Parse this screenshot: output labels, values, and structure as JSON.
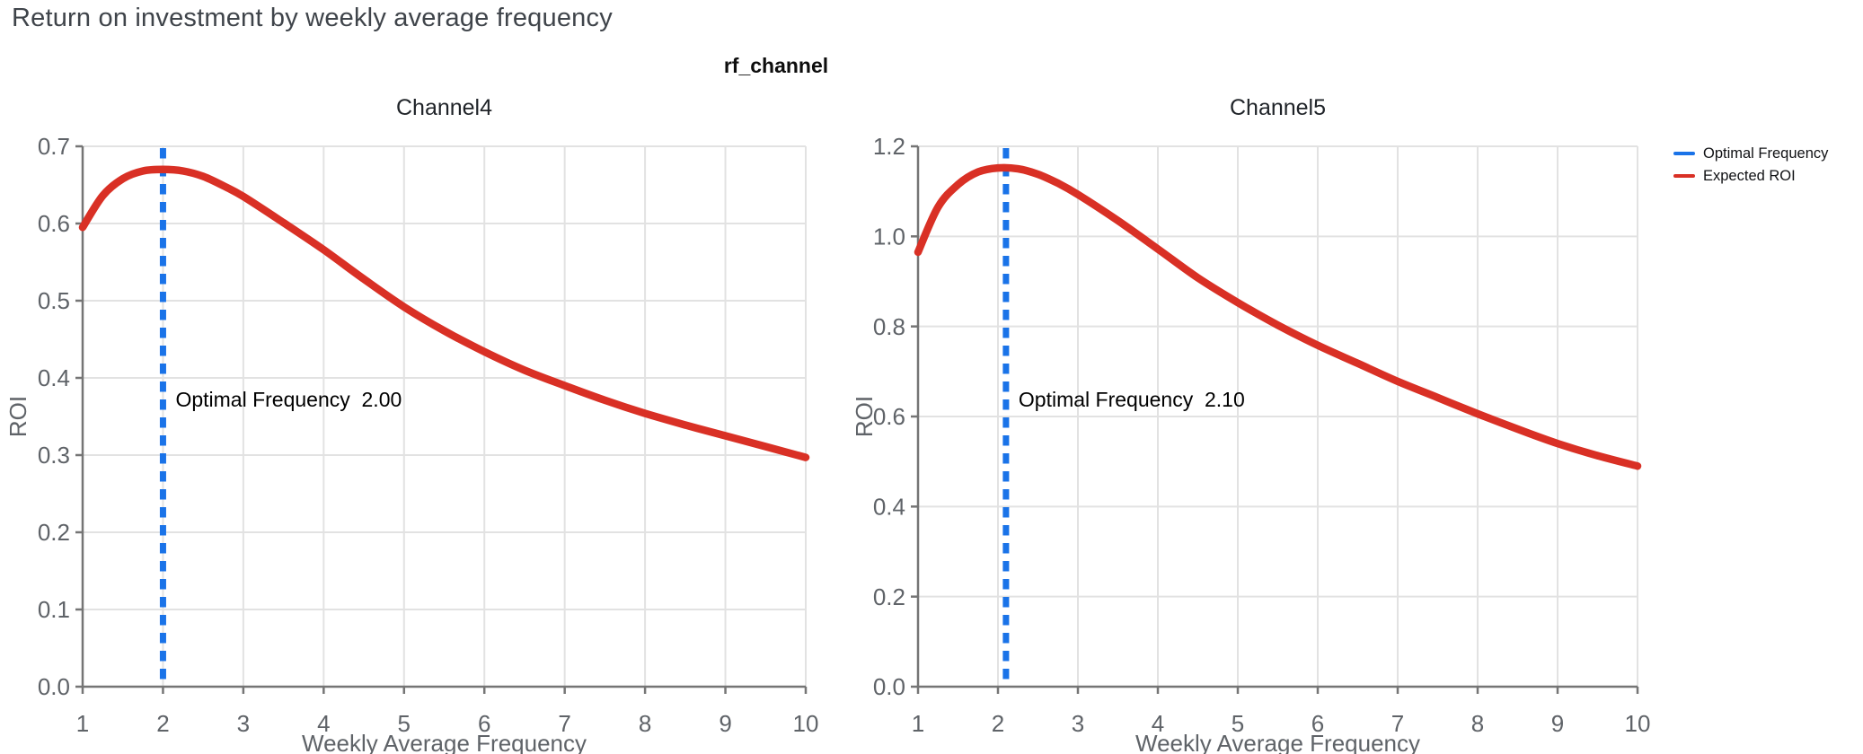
{
  "header": {
    "title": "Return on investment by weekly average frequency"
  },
  "figure": {
    "suptitle": "rf_channel"
  },
  "legend": {
    "position": "top-right",
    "items": [
      {
        "label": "Optimal Frequency",
        "color": "#1a73e8"
      },
      {
        "label": "Expected ROI",
        "color": "#d93025"
      }
    ]
  },
  "colors": {
    "expected_roi_line": "#d93025",
    "optimal_frequency_line": "#1a73e8",
    "gridline": "#e2e2e2",
    "axis_spine": "#757575",
    "tick_label": "#5f6368",
    "axis_title": "#5f6368",
    "chart_title": "#1f2328",
    "annotation_text": "#000000",
    "page_title": "#3f444a",
    "background": "#ffffff"
  },
  "chart_data": [
    {
      "type": "line",
      "title": "Channel4",
      "xlabel": "Weekly Average Frequency",
      "ylabel": "ROI",
      "xlim": [
        1,
        10
      ],
      "ylim": [
        0.0,
        0.7
      ],
      "grid": true,
      "xticks": [
        1,
        2,
        3,
        4,
        5,
        6,
        7,
        8,
        9,
        10
      ],
      "xtick_labels": [
        "1",
        "2",
        "3",
        "4",
        "5",
        "6",
        "7",
        "8",
        "9",
        "10"
      ],
      "yticks": [
        0.0,
        0.1,
        0.2,
        0.3,
        0.4,
        0.5,
        0.6,
        0.7
      ],
      "ytick_labels": [
        "0.0",
        "0.1",
        "0.2",
        "0.3",
        "0.4",
        "0.5",
        "0.6",
        "0.7"
      ],
      "series": [
        {
          "name": "Expected ROI",
          "color": "#d93025",
          "x": [
            1,
            1.25,
            1.5,
            1.75,
            2,
            2.25,
            2.5,
            2.75,
            3,
            3.5,
            4,
            4.5,
            5,
            5.5,
            6,
            6.5,
            7,
            7.5,
            8,
            8.5,
            9,
            9.5,
            10
          ],
          "y": [
            0.595,
            0.636,
            0.658,
            0.668,
            0.67,
            0.668,
            0.661,
            0.649,
            0.635,
            0.601,
            0.566,
            0.528,
            0.492,
            0.461,
            0.434,
            0.41,
            0.39,
            0.371,
            0.354,
            0.339,
            0.325,
            0.311,
            0.297
          ]
        }
      ],
      "vline": {
        "name": "Optimal Frequency",
        "color": "#1a73e8",
        "x": 2.0,
        "style": "dashed"
      },
      "annotation": {
        "label": "Optimal Frequency",
        "value": "2.00"
      },
      "peak": {
        "x": 2.0,
        "roi": 0.67
      }
    },
    {
      "type": "line",
      "title": "Channel5",
      "xlabel": "Weekly Average Frequency",
      "ylabel": "ROI",
      "xlim": [
        1,
        10
      ],
      "ylim": [
        0.0,
        1.2
      ],
      "grid": true,
      "xticks": [
        1,
        2,
        3,
        4,
        5,
        6,
        7,
        8,
        9,
        10
      ],
      "xtick_labels": [
        "1",
        "2",
        "3",
        "4",
        "5",
        "6",
        "7",
        "8",
        "9",
        "10"
      ],
      "yticks": [
        0.0,
        0.2,
        0.4,
        0.6,
        0.8,
        1.0,
        1.2
      ],
      "ytick_labels": [
        "0.0",
        "0.2",
        "0.4",
        "0.6",
        "0.8",
        "1.0",
        "1.2"
      ],
      "series": [
        {
          "name": "Expected ROI",
          "color": "#d93025",
          "x": [
            1,
            1.25,
            1.5,
            1.75,
            2,
            2.25,
            2.5,
            2.75,
            3,
            3.5,
            4,
            4.5,
            5,
            5.5,
            6,
            6.5,
            7,
            7.5,
            8,
            8.5,
            9,
            9.5,
            10
          ],
          "y": [
            0.965,
            1.065,
            1.115,
            1.143,
            1.152,
            1.15,
            1.138,
            1.118,
            1.093,
            1.035,
            0.972,
            0.908,
            0.853,
            0.803,
            0.758,
            0.718,
            0.678,
            0.642,
            0.606,
            0.572,
            0.54,
            0.513,
            0.49
          ]
        }
      ],
      "vline": {
        "name": "Optimal Frequency",
        "color": "#1a73e8",
        "x": 2.1,
        "style": "dashed"
      },
      "annotation": {
        "label": "Optimal Frequency",
        "value": "2.10"
      },
      "peak": {
        "x": 2.1,
        "roi": 1.15
      }
    }
  ]
}
